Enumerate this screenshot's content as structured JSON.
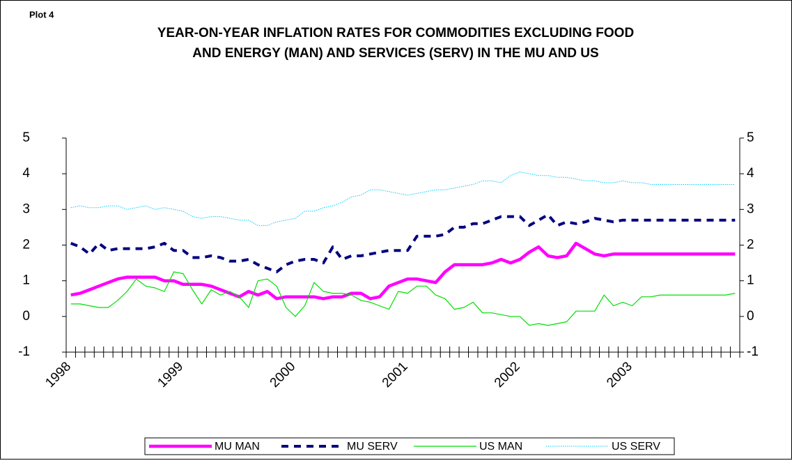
{
  "chart_data": {
    "type": "line",
    "label": "Plot 4",
    "title": "YEAR-ON-YEAR INFLATION RATES FOR COMMODITIES EXCLUDING FOOD AND ENERGY (MAN) AND SERVICES (SERV) IN THE MU AND US",
    "categories": [
      "1998",
      null,
      null,
      null,
      null,
      null,
      null,
      null,
      null,
      null,
      null,
      null,
      "1999",
      null,
      null,
      null,
      null,
      null,
      null,
      null,
      null,
      null,
      null,
      null,
      "2000",
      null,
      null,
      null,
      null,
      null,
      null,
      null,
      null,
      null,
      null,
      null,
      "2001",
      null,
      null,
      null,
      null,
      null,
      null,
      null,
      null,
      null,
      null,
      null,
      "2002",
      null,
      null,
      null,
      null,
      null,
      null,
      null,
      null,
      null,
      null,
      null,
      "2003",
      null,
      null,
      null,
      null,
      null,
      null,
      null,
      null,
      null,
      null,
      null
    ],
    "ylim": [
      -1,
      5
    ],
    "yticks": [
      -1,
      0,
      1,
      2,
      3,
      4,
      5
    ],
    "y2lim": [
      -1,
      5
    ],
    "y2ticks": [
      -1,
      0,
      1,
      2,
      3,
      4,
      5
    ],
    "legend": "bottom",
    "series": [
      {
        "name": "MU MAN",
        "color": "#ff00ff",
        "line_style": "solid-thick",
        "values": [
          0.6,
          0.65,
          0.75,
          0.85,
          0.95,
          1.05,
          1.1,
          1.1,
          1.1,
          1.1,
          1.0,
          1.0,
          0.9,
          0.9,
          0.9,
          0.85,
          0.75,
          0.65,
          0.55,
          0.7,
          0.6,
          0.7,
          0.5,
          0.55,
          0.55,
          0.55,
          0.55,
          0.5,
          0.55,
          0.55,
          0.65,
          0.65,
          0.5,
          0.55,
          0.85,
          0.95,
          1.05,
          1.05,
          1.0,
          0.95,
          1.25,
          1.45,
          1.45,
          1.45,
          1.45,
          1.5,
          1.6,
          1.5,
          1.6,
          1.8,
          1.95,
          1.7,
          1.65,
          1.7,
          2.05,
          1.9,
          1.75,
          1.7,
          1.75,
          1.75,
          1.75,
          1.75,
          1.75,
          1.75,
          1.75,
          1.75,
          1.75,
          1.75,
          1.75,
          1.75,
          1.75,
          1.75
        ]
      },
      {
        "name": "MU SERV",
        "color": "#000080",
        "line_style": "dashed",
        "values": [
          2.05,
          1.95,
          1.75,
          2.05,
          1.85,
          1.9,
          1.9,
          1.9,
          1.9,
          1.95,
          2.05,
          1.85,
          1.85,
          1.65,
          1.65,
          1.7,
          1.65,
          1.55,
          1.55,
          1.6,
          1.45,
          1.35,
          1.25,
          1.45,
          1.55,
          1.6,
          1.6,
          1.5,
          1.95,
          1.6,
          1.7,
          1.7,
          1.75,
          1.8,
          1.85,
          1.85,
          1.85,
          2.25,
          2.25,
          2.25,
          2.3,
          2.5,
          2.5,
          2.6,
          2.6,
          2.7,
          2.8,
          2.8,
          2.8,
          2.55,
          2.7,
          2.85,
          2.55,
          2.65,
          2.6,
          2.65,
          2.75,
          2.7,
          2.65,
          2.7,
          2.7,
          2.7,
          2.7,
          2.7,
          2.7,
          2.7,
          2.7,
          2.7,
          2.7,
          2.7,
          2.7,
          2.7
        ]
      },
      {
        "name": "US MAN",
        "color": "#00dd00",
        "line_style": "solid",
        "values": [
          0.35,
          0.35,
          0.3,
          0.25,
          0.25,
          0.45,
          0.7,
          1.05,
          0.85,
          0.8,
          0.7,
          1.25,
          1.2,
          0.75,
          0.35,
          0.75,
          0.6,
          0.7,
          0.55,
          0.25,
          1.0,
          1.05,
          0.85,
          0.25,
          0.0,
          0.3,
          0.95,
          0.7,
          0.65,
          0.65,
          0.6,
          0.45,
          0.4,
          0.3,
          0.2,
          0.7,
          0.65,
          0.85,
          0.85,
          0.6,
          0.5,
          0.2,
          0.25,
          0.4,
          0.1,
          0.1,
          0.05,
          0.0,
          0.0,
          -0.25,
          -0.2,
          -0.25,
          -0.2,
          -0.15,
          0.15,
          0.15,
          0.15,
          0.6,
          0.3,
          0.4,
          0.3,
          0.55,
          0.55,
          0.6,
          0.6,
          0.6,
          0.6,
          0.6,
          0.6,
          0.6,
          0.6,
          0.65
        ]
      },
      {
        "name": "US SERV",
        "color": "#00ccff",
        "line_style": "dotted",
        "values": [
          3.05,
          3.1,
          3.05,
          3.05,
          3.1,
          3.1,
          3.0,
          3.05,
          3.1,
          3.0,
          3.05,
          3.0,
          2.95,
          2.8,
          2.75,
          2.8,
          2.8,
          2.75,
          2.7,
          2.7,
          2.55,
          2.55,
          2.65,
          2.7,
          2.75,
          2.95,
          2.95,
          3.05,
          3.1,
          3.2,
          3.35,
          3.4,
          3.55,
          3.55,
          3.5,
          3.45,
          3.4,
          3.45,
          3.5,
          3.55,
          3.55,
          3.6,
          3.65,
          3.7,
          3.8,
          3.8,
          3.75,
          3.95,
          4.05,
          4.0,
          3.95,
          3.95,
          3.9,
          3.9,
          3.85,
          3.8,
          3.8,
          3.75,
          3.75,
          3.8,
          3.75,
          3.75,
          3.7,
          3.7,
          3.7,
          3.7,
          3.7,
          3.7,
          3.7,
          3.7,
          3.7,
          3.7
        ]
      }
    ]
  }
}
